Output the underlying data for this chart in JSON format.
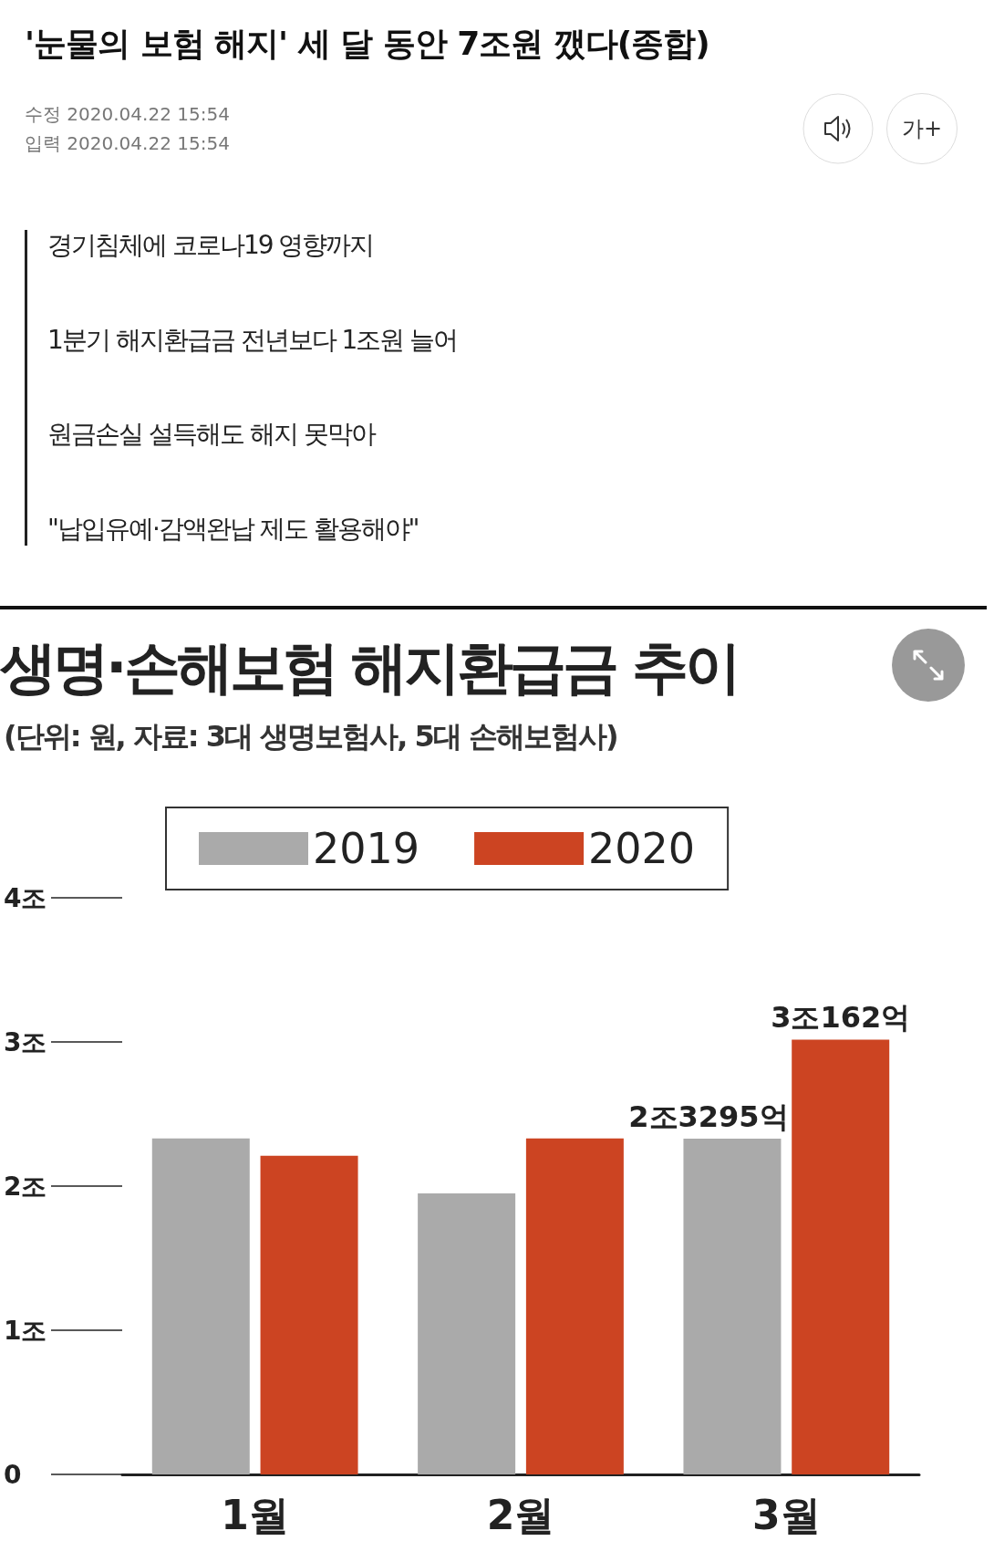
{
  "chart_data": {
    "type": "bar",
    "title": "생명·손해보험 해지환급금 추이",
    "subtitle": "(단위: 원, 자료: 3대 생명보험사, 5대 손해보험사)",
    "annotations": [
      "'눈물의 보험 해지' 세 달 동안 7조원 깼다(종합)",
      "수정 2020.04.22 15:54",
      "입력 2020.04.22 15:54",
      "경기침체에 코로나19 영향까지",
      "1분기 해지환급금 전년보다 1조원 늘어",
      "원금손실 설득해도 해지 못막아",
      "\"납입유예·감액완납 제도 활용해야\"",
      "가+"
    ],
    "categories": [
      "1월",
      "2월",
      "3월"
    ],
    "series": [
      {
        "name": "2019",
        "color": "#aaaaaa",
        "values": [
          2.33,
          1.95,
          2.3295
        ],
        "value_labels": [
          null,
          null,
          "2조3295억"
        ]
      },
      {
        "name": "2020",
        "color": "#cc4422",
        "values": [
          2.21,
          2.33,
          3.0162
        ],
        "value_labels": [
          null,
          null,
          "3조162억"
        ]
      }
    ],
    "ylim": [
      0,
      4
    ],
    "yticks": [
      {
        "value": 0,
        "label": "0"
      },
      {
        "value": 1,
        "label": "1조"
      },
      {
        "value": 2,
        "label": "2조"
      },
      {
        "value": 3,
        "label": "3조"
      },
      {
        "value": 4,
        "label": "4조"
      }
    ],
    "grid": false,
    "legend": "top"
  }
}
